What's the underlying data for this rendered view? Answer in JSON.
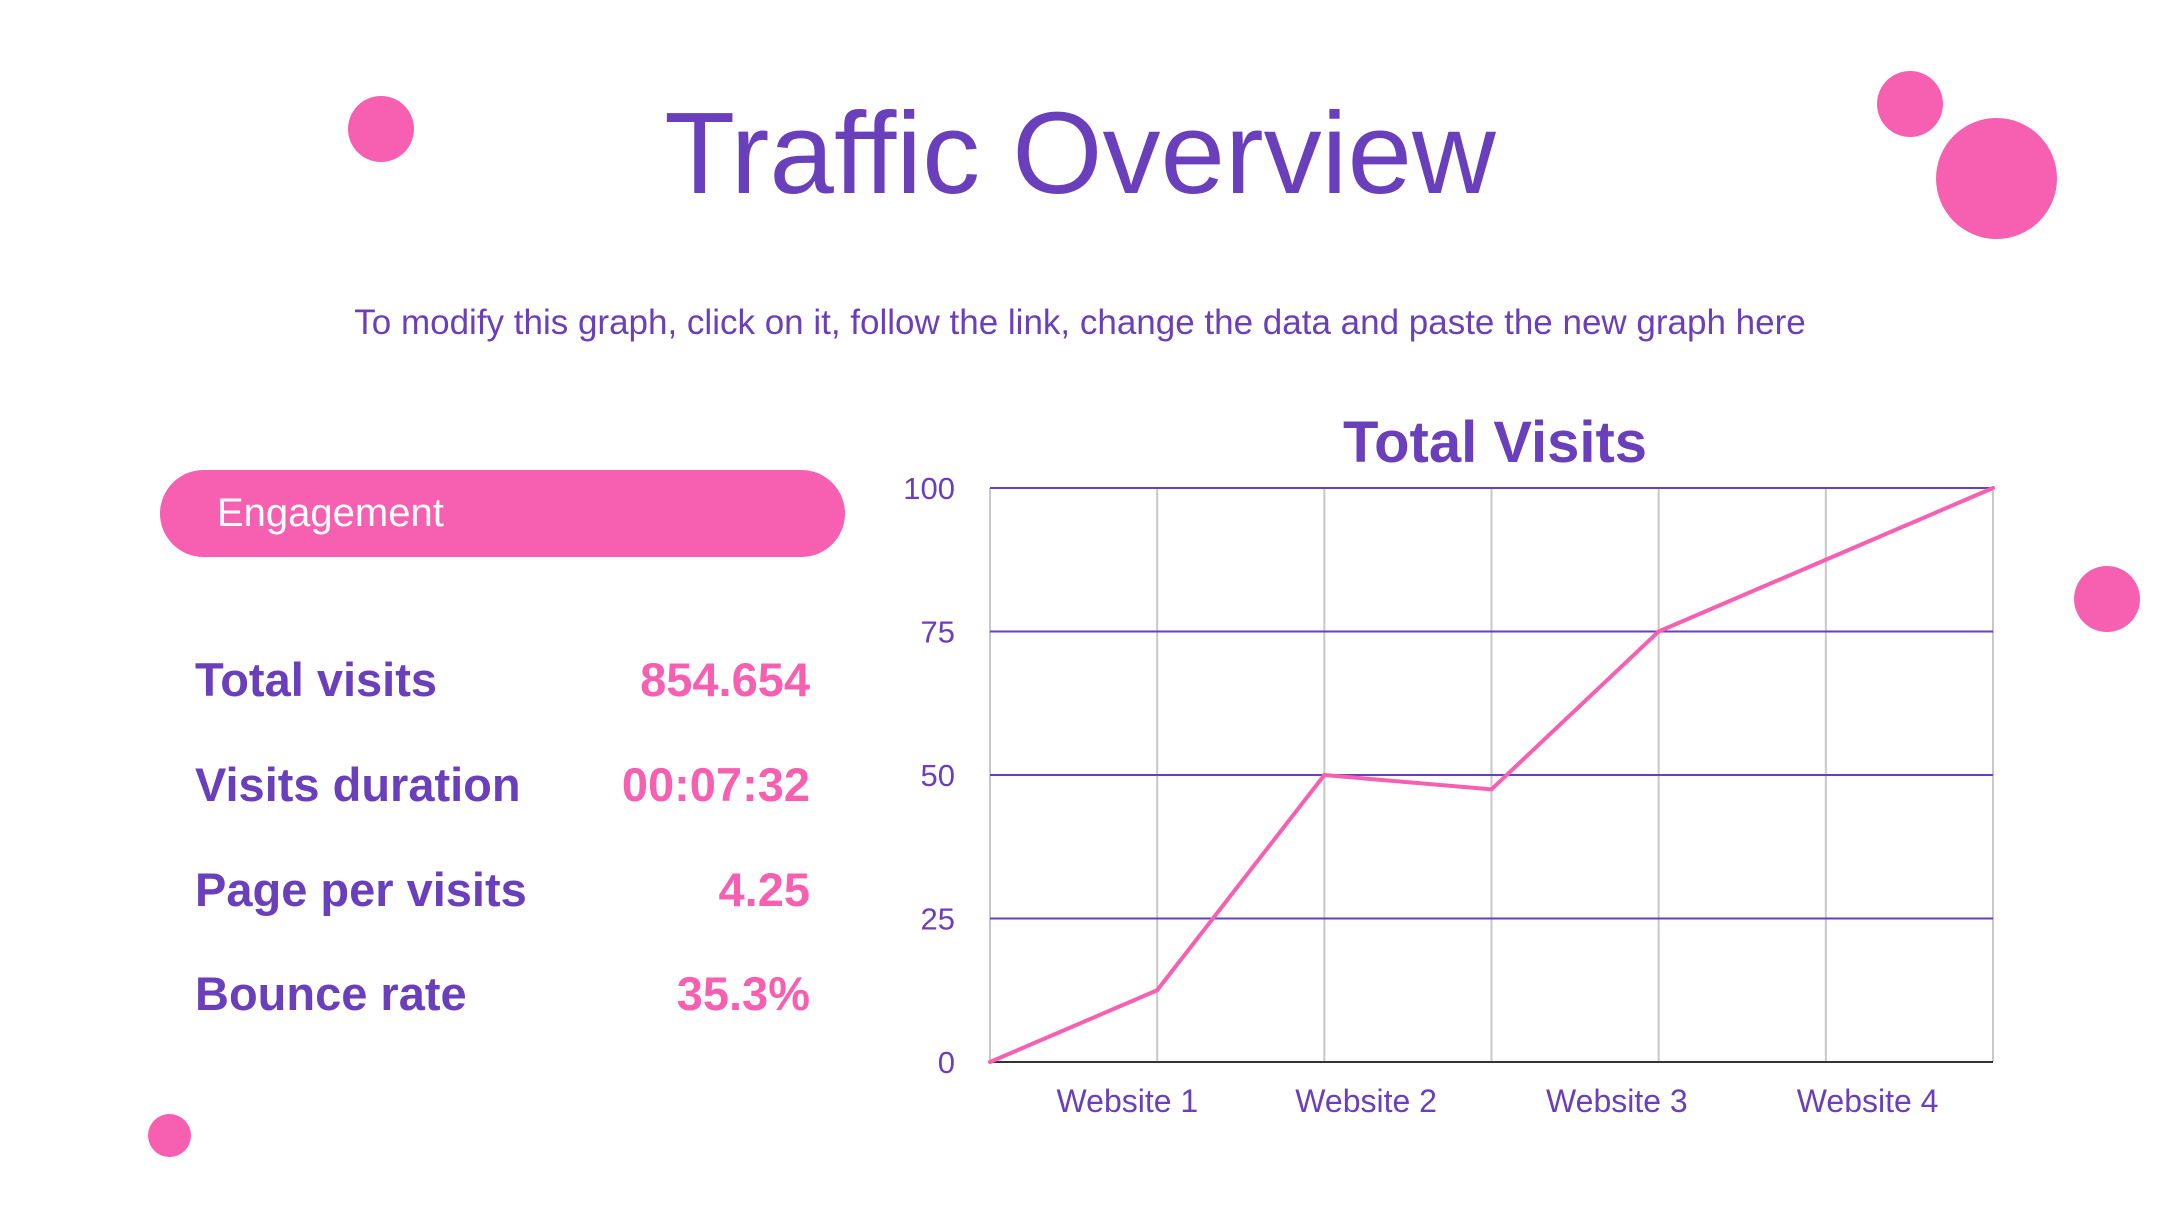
{
  "slide": {
    "title": "Traffic Overview",
    "subtitle": "To modify this graph, click on it, follow the link, change the data and paste the new graph here"
  },
  "engagement": {
    "label": "Engagement",
    "stats": [
      {
        "label": "Total visits",
        "value": "854.654"
      },
      {
        "label": "Visits duration",
        "value": "00:07:32"
      },
      {
        "label": "Page per visits",
        "value": "4.25"
      },
      {
        "label": "Bounce rate",
        "value": "35.3%"
      }
    ]
  },
  "colors": {
    "accent_pink": "#f75fb1",
    "primary_purple": "#6a3fbb"
  },
  "chart_data": {
    "type": "line",
    "title": "Total Visits",
    "xlabel": "",
    "ylabel": "",
    "ylim": [
      0,
      100
    ],
    "yticks": [
      "0",
      "25",
      "50",
      "75",
      "100"
    ],
    "categories": [
      "Website 1",
      "Website 2",
      "Website 3",
      "Website 4"
    ],
    "x": [
      0,
      1,
      2,
      3,
      4,
      5,
      6
    ],
    "series": [
      {
        "values": [
          0,
          12.5,
          50,
          47.5,
          75,
          87.5,
          100
        ]
      }
    ],
    "grid": true,
    "legend": "none"
  }
}
